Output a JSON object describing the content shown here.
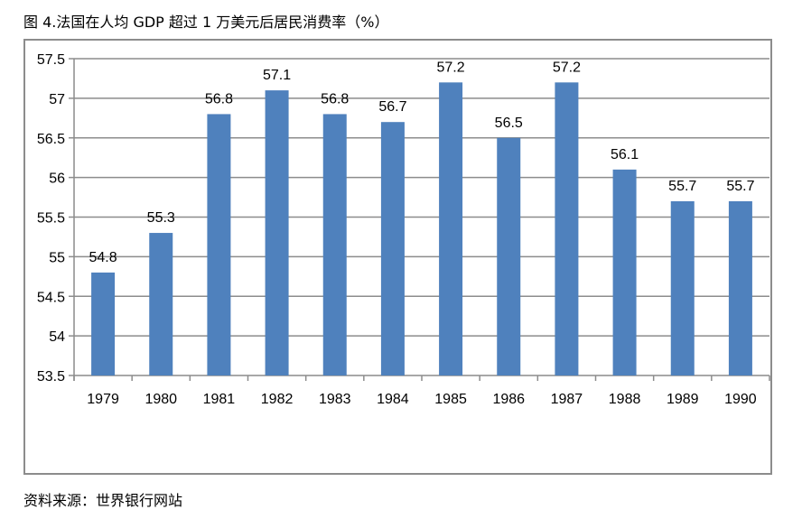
{
  "title": "图 4.法国在人均 GDP 超过 1 万美元后居民消费率（%）",
  "source": "资料来源：世界银行网站",
  "chart_data": {
    "type": "bar",
    "categories": [
      "1979",
      "1980",
      "1981",
      "1982",
      "1983",
      "1984",
      "1985",
      "1986",
      "1987",
      "1988",
      "1989",
      "1990"
    ],
    "values": [
      54.8,
      55.3,
      56.8,
      57.1,
      56.8,
      56.7,
      57.2,
      56.5,
      57.2,
      56.1,
      55.7,
      55.7
    ],
    "data_labels": [
      "54.8",
      "55.3",
      "56.8",
      "57.1",
      "56.8",
      "56.7",
      "57.2",
      "56.5",
      "57.2",
      "56.1",
      "55.7",
      "55.7"
    ],
    "ylim": [
      53.5,
      57.5
    ],
    "yticks": [
      "53.5",
      "54",
      "54.5",
      "55",
      "55.5",
      "56",
      "56.5",
      "57",
      "57.5"
    ],
    "grid": true,
    "bar_color": "#4f81bd"
  }
}
